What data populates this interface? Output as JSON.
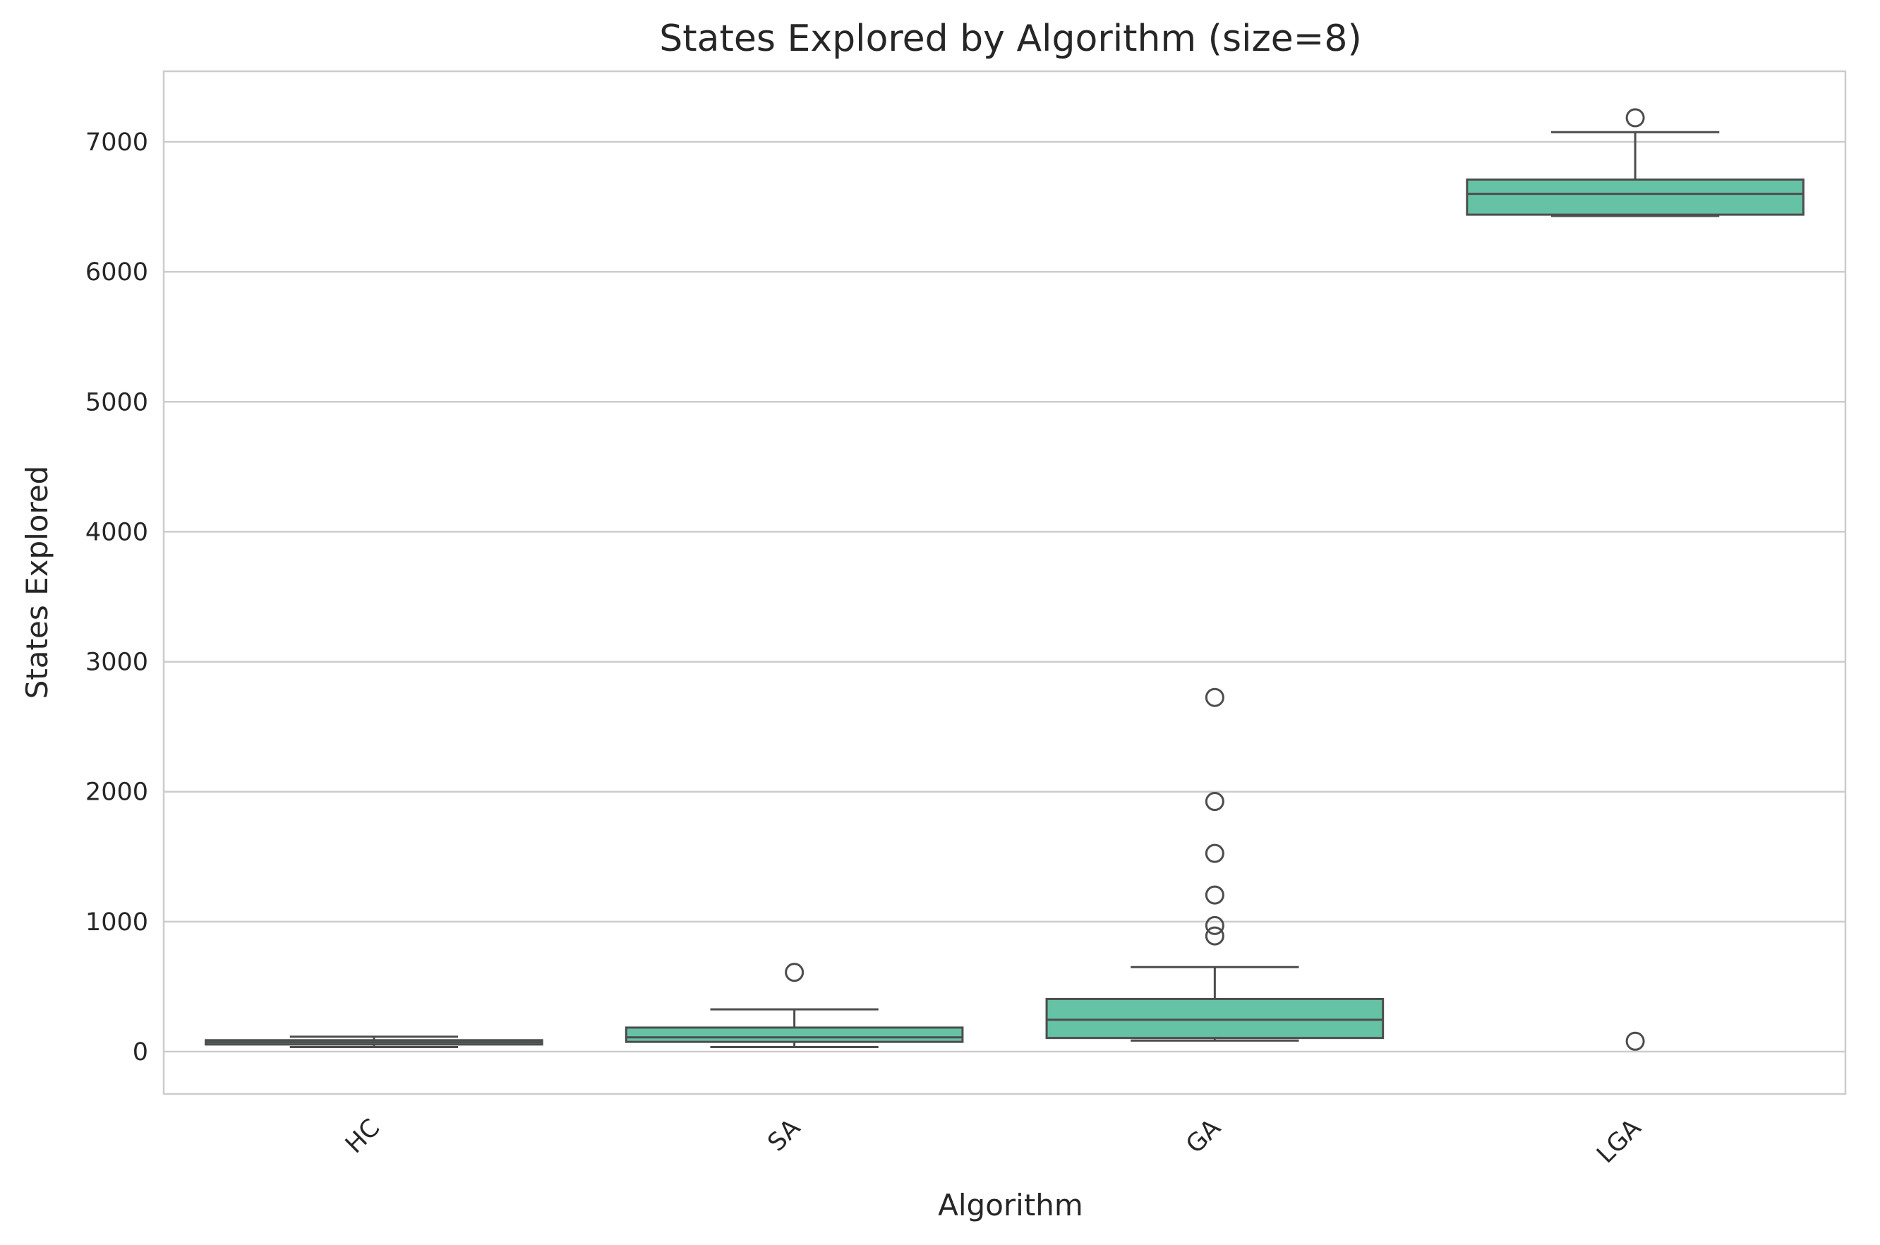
{
  "chart_data": {
    "type": "box",
    "title": "States Explored by Algorithm (size=8)",
    "xlabel": "Algorithm",
    "ylabel": "States Explored",
    "ylim": [
      -320,
      7550
    ],
    "yticks": [
      0,
      1000,
      2000,
      3000,
      4000,
      5000,
      6000,
      7000
    ],
    "grid": "horizontal",
    "box_color": "#66c2a5",
    "line_color": "#4d4d4d",
    "categories": [
      "HC",
      "SA",
      "GA",
      "LGA"
    ],
    "boxes": [
      {
        "category": "HC",
        "whisker_low": 35,
        "q1": 55,
        "median": 72,
        "q3": 88,
        "whisker_high": 115,
        "outliers": []
      },
      {
        "category": "SA",
        "whisker_low": 35,
        "q1": 75,
        "median": 110,
        "q3": 185,
        "whisker_high": 325,
        "outliers": [
          610
        ]
      },
      {
        "category": "GA",
        "whisker_low": 85,
        "q1": 105,
        "median": 245,
        "q3": 405,
        "whisker_high": 650,
        "outliers": [
          890,
          970,
          1205,
          1525,
          1925,
          2725
        ]
      },
      {
        "category": "LGA",
        "whisker_low": 6430,
        "q1": 6440,
        "median": 6600,
        "q3": 6710,
        "whisker_high": 7075,
        "outliers": [
          7185,
          80
        ]
      }
    ]
  }
}
